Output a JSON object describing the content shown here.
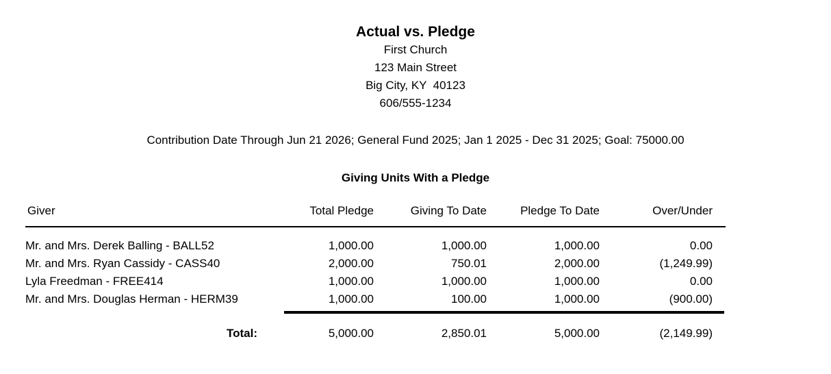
{
  "report": {
    "title": "Actual vs. Pledge",
    "organization": {
      "name": "First Church",
      "address_line1": "123 Main Street",
      "address_line2": "Big City, KY  40123",
      "phone": "606/555-1234"
    },
    "criteria": "Contribution Date Through Jun 21 2026; General Fund 2025; Jan 1 2025 - Dec 31 2025; Goal: 75000.00",
    "section_title": "Giving Units With a Pledge",
    "colors": {
      "text": "#000000",
      "background": "#ffffff"
    },
    "table": {
      "columns": [
        "Giver",
        "Total Pledge",
        "Giving To Date",
        "Pledge To Date",
        "Over/Under"
      ],
      "rows": [
        {
          "giver": "Mr. and Mrs. Derek Balling - BALL52",
          "total_pledge": "1,000.00",
          "giving_to_date": "1,000.00",
          "pledge_to_date": "1,000.00",
          "over_under": "0.00"
        },
        {
          "giver": "Mr. and Mrs. Ryan Cassidy - CASS40",
          "total_pledge": "2,000.00",
          "giving_to_date": "750.01",
          "pledge_to_date": "2,000.00",
          "over_under": "(1,249.99)"
        },
        {
          "giver": "Lyla Freedman - FREE414",
          "total_pledge": "1,000.00",
          "giving_to_date": "1,000.00",
          "pledge_to_date": "1,000.00",
          "over_under": "0.00"
        },
        {
          "giver": "Mr. and Mrs. Douglas Herman - HERM39",
          "total_pledge": "1,000.00",
          "giving_to_date": "100.00",
          "pledge_to_date": "1,000.00",
          "over_under": "(900.00)"
        }
      ],
      "total": {
        "label": "Total:",
        "total_pledge": "5,000.00",
        "giving_to_date": "2,850.01",
        "pledge_to_date": "5,000.00",
        "over_under": "(2,149.99)"
      }
    }
  }
}
